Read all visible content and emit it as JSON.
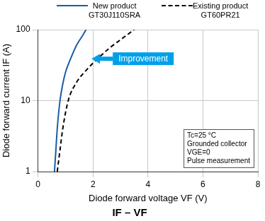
{
  "chart_data": {
    "type": "line",
    "title": "IF – VF",
    "x_label": "Diode forward voltage VF (V)",
    "y_label": "Diode forward current IF (A)",
    "series": [
      {
        "name": "New product\nGT30J110SRA",
        "color": "#1a5ca8",
        "line_style": "solid",
        "x": [
          0.6,
          0.65,
          0.7,
          0.8,
          0.9,
          1.0,
          1.2,
          1.4,
          1.6,
          1.75
        ],
        "values": [
          1,
          2,
          4,
          10,
          17,
          25,
          40,
          60,
          80,
          100
        ]
      },
      {
        "name": "Existing product\nGT60PR21",
        "color": "#000000",
        "line_style": "dashed",
        "x": [
          0.7,
          0.8,
          0.9,
          1.1,
          1.4,
          1.8,
          2.2,
          2.6,
          3.0,
          3.5
        ],
        "values": [
          1,
          2,
          4,
          10,
          18,
          28,
          40,
          55,
          72,
          100
        ]
      }
    ],
    "xlim": [
      0,
      8
    ],
    "xticks": [
      0,
      2,
      4,
      6,
      8
    ],
    "ylim": [
      1,
      100
    ],
    "yticks": [
      1,
      10,
      100
    ],
    "log": "y",
    "grid": true,
    "legend": "top",
    "annotations": [
      "Improvement",
      "Tc=25 °C\nGrounded collector\nVGE=0\nPulse measurement"
    ]
  }
}
